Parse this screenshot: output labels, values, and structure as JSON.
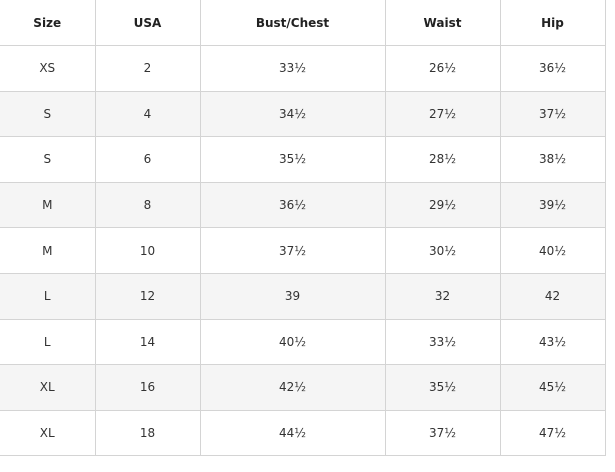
{
  "table": {
    "header": [
      "Size",
      "USA",
      "Bust/Chest",
      "Waist",
      "Hip"
    ],
    "rows": [
      [
        "XS",
        "2",
        "33½",
        "26½",
        "36½"
      ],
      [
        "S",
        "4",
        "34½",
        "27½",
        "37½"
      ],
      [
        "S",
        "6",
        "35½",
        "28½",
        "38½"
      ],
      [
        "M",
        "8",
        "36½",
        "29½",
        "39½"
      ],
      [
        "M",
        "10",
        "37½",
        "30½",
        "40½"
      ],
      [
        "L",
        "12",
        "39",
        "32",
        "42"
      ],
      [
        "L",
        "14",
        "40½",
        "33½",
        "43½"
      ],
      [
        "XL",
        "16",
        "42½",
        "35½",
        "45½"
      ],
      [
        "XL",
        "18",
        "44½",
        "37½",
        "47½"
      ]
    ]
  }
}
